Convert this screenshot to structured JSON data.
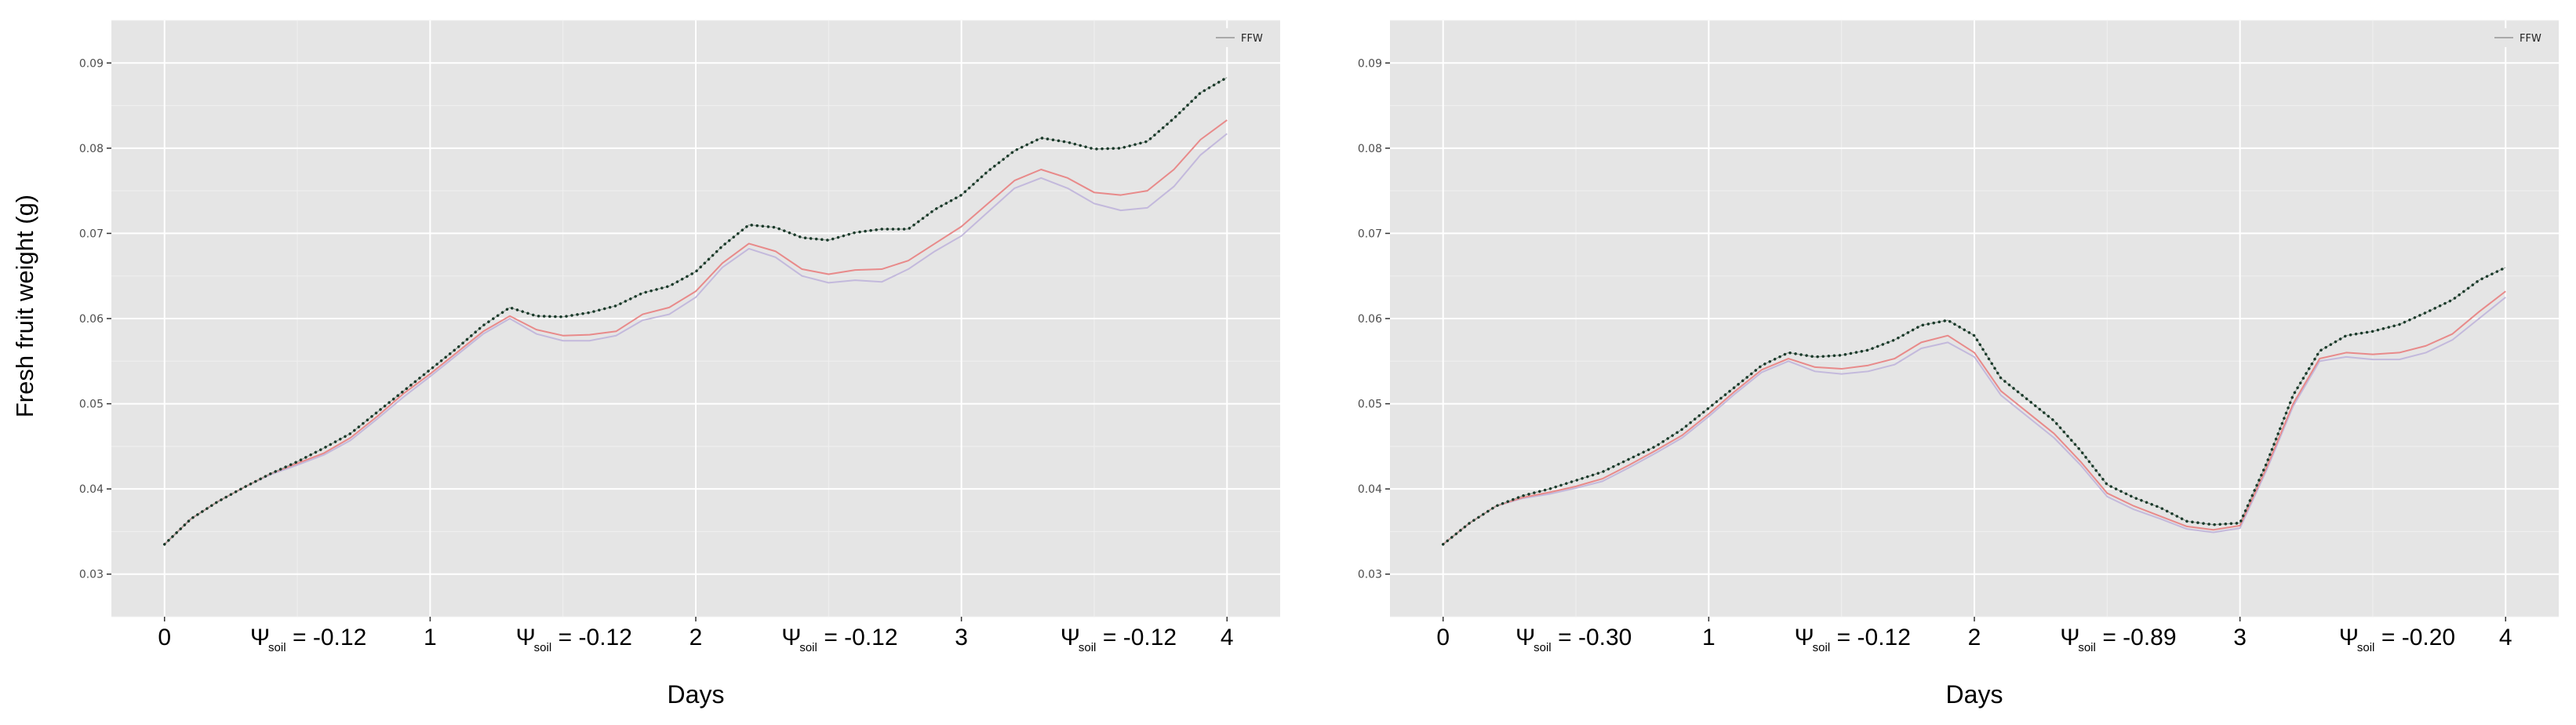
{
  "ylabel": "Fresh fruit weight (g)",
  "chart_data": [
    {
      "type": "line",
      "xlabel": "Days",
      "x_ticks": [
        "0",
        "1",
        "2",
        "3",
        "4"
      ],
      "y_ticks": [
        "0.03",
        "0.04",
        "0.05",
        "0.06",
        "0.07",
        "0.08",
        "0.09"
      ],
      "xlim": [
        -0.2,
        4.2
      ],
      "ylim": [
        0.025,
        0.095
      ],
      "grid": true,
      "legend": {
        "position": "top-right",
        "entries": [
          {
            "label": "FFW",
            "color": "#a9a9a9"
          }
        ]
      },
      "psi_annotations": [
        {
          "x": 0.5,
          "sym": "Ψ",
          "sub": "soil",
          "value": "= -0.12"
        },
        {
          "x": 1.5,
          "sym": "Ψ",
          "sub": "soil",
          "value": "= -0.12"
        },
        {
          "x": 2.5,
          "sym": "Ψ",
          "sub": "soil",
          "value": "= -0.12"
        },
        {
          "x": 3.55,
          "sym": "Ψ",
          "sub": "soil",
          "value": "= -0.12"
        }
      ],
      "x": [
        0,
        0.1,
        0.2,
        0.3,
        0.4,
        0.5,
        0.6,
        0.7,
        0.8,
        0.9,
        1.0,
        1.1,
        1.2,
        1.3,
        1.4,
        1.5,
        1.6,
        1.7,
        1.8,
        1.9,
        2.0,
        2.1,
        2.2,
        2.3,
        2.4,
        2.5,
        2.6,
        2.7,
        2.8,
        2.9,
        3.0,
        3.1,
        3.2,
        3.3,
        3.4,
        3.5,
        3.6,
        3.7,
        3.8,
        3.9,
        4.0
      ],
      "series": [
        {
          "color": "#1a3a2a",
          "style": "dotted",
          "values": [
            0.0335,
            0.0365,
            0.0385,
            0.0402,
            0.0418,
            0.0432,
            0.0448,
            0.0465,
            0.049,
            0.0515,
            0.054,
            0.0565,
            0.0592,
            0.0613,
            0.0603,
            0.0602,
            0.0607,
            0.0615,
            0.063,
            0.0638,
            0.0655,
            0.0685,
            0.071,
            0.0707,
            0.0695,
            0.0692,
            0.0701,
            0.0705,
            0.0705,
            0.0728,
            0.0745,
            0.0773,
            0.0797,
            0.0812,
            0.0807,
            0.0799,
            0.08,
            0.0808,
            0.0835,
            0.0865,
            0.0883
          ]
        },
        {
          "color": "#e88a8a",
          "style": "solid",
          "values": [
            0.0335,
            0.0365,
            0.0385,
            0.0402,
            0.0418,
            0.043,
            0.0442,
            0.046,
            0.0485,
            0.0512,
            0.0535,
            0.056,
            0.0585,
            0.0603,
            0.0587,
            0.058,
            0.0581,
            0.0585,
            0.0605,
            0.0613,
            0.0632,
            0.0665,
            0.0688,
            0.0679,
            0.0658,
            0.0652,
            0.0657,
            0.0658,
            0.0668,
            0.0688,
            0.0708,
            0.0735,
            0.0762,
            0.0775,
            0.0765,
            0.0748,
            0.0745,
            0.075,
            0.0775,
            0.081,
            0.0833
          ]
        },
        {
          "color": "#c3b9dc",
          "style": "solid",
          "values": [
            0.0335,
            0.0365,
            0.0385,
            0.0402,
            0.0417,
            0.0428,
            0.044,
            0.0457,
            0.0482,
            0.0508,
            0.0532,
            0.0557,
            0.0582,
            0.06,
            0.0582,
            0.0574,
            0.0574,
            0.058,
            0.0598,
            0.0605,
            0.0625,
            0.066,
            0.0682,
            0.0672,
            0.065,
            0.0642,
            0.0645,
            0.0643,
            0.0658,
            0.0679,
            0.0697,
            0.0725,
            0.0753,
            0.0765,
            0.0753,
            0.0735,
            0.0727,
            0.073,
            0.0755,
            0.0792,
            0.0817
          ]
        }
      ]
    },
    {
      "type": "line",
      "xlabel": "Days",
      "x_ticks": [
        "0",
        "1",
        "2",
        "3",
        "4"
      ],
      "y_ticks": [
        "0.03",
        "0.04",
        "0.05",
        "0.06",
        "0.07",
        "0.08",
        "0.09"
      ],
      "xlim": [
        -0.2,
        4.2
      ],
      "ylim": [
        0.025,
        0.095
      ],
      "grid": true,
      "legend": {
        "position": "top-right",
        "entries": [
          {
            "label": "FFW",
            "color": "#a9a9a9"
          }
        ]
      },
      "psi_annotations": [
        {
          "x": 0.45,
          "sym": "Ψ",
          "sub": "soil",
          "value": "= -0.30"
        },
        {
          "x": 1.5,
          "sym": "Ψ",
          "sub": "soil",
          "value": "= -0.12"
        },
        {
          "x": 2.5,
          "sym": "Ψ",
          "sub": "soil",
          "value": "= -0.89"
        },
        {
          "x": 3.55,
          "sym": "Ψ",
          "sub": "soil",
          "value": "= -0.20"
        }
      ],
      "x": [
        0,
        0.1,
        0.2,
        0.3,
        0.4,
        0.5,
        0.6,
        0.7,
        0.8,
        0.9,
        1.0,
        1.1,
        1.2,
        1.3,
        1.4,
        1.5,
        1.6,
        1.7,
        1.8,
        1.9,
        2.0,
        2.1,
        2.2,
        2.3,
        2.4,
        2.5,
        2.6,
        2.7,
        2.8,
        2.9,
        3.0,
        3.1,
        3.2,
        3.3,
        3.4,
        3.5,
        3.6,
        3.7,
        3.8,
        3.9,
        4.0
      ],
      "series": [
        {
          "color": "#1a3a2a",
          "style": "dotted",
          "values": [
            0.0335,
            0.036,
            0.038,
            0.0392,
            0.04,
            0.041,
            0.042,
            0.0435,
            0.045,
            0.047,
            0.0495,
            0.052,
            0.0545,
            0.056,
            0.0555,
            0.0557,
            0.0563,
            0.0575,
            0.0592,
            0.0598,
            0.058,
            0.053,
            0.0505,
            0.048,
            0.0445,
            0.0405,
            0.039,
            0.0378,
            0.0362,
            0.0358,
            0.036,
            0.043,
            0.051,
            0.0562,
            0.058,
            0.0585,
            0.0593,
            0.0607,
            0.0622,
            0.0645,
            0.066
          ]
        },
        {
          "color": "#e88a8a",
          "style": "solid",
          "values": [
            0.0335,
            0.036,
            0.038,
            0.039,
            0.0396,
            0.0403,
            0.0412,
            0.0428,
            0.0445,
            0.0463,
            0.0488,
            0.0515,
            0.054,
            0.0553,
            0.0543,
            0.0541,
            0.0545,
            0.0553,
            0.0572,
            0.058,
            0.056,
            0.0515,
            0.049,
            0.0465,
            0.0432,
            0.0395,
            0.038,
            0.0368,
            0.0356,
            0.0352,
            0.0357,
            0.0425,
            0.05,
            0.0553,
            0.056,
            0.0558,
            0.056,
            0.0568,
            0.0582,
            0.0608,
            0.0632
          ]
        },
        {
          "color": "#c3b9dc",
          "style": "solid",
          "values": [
            0.0335,
            0.036,
            0.038,
            0.0389,
            0.0394,
            0.0401,
            0.0409,
            0.0425,
            0.0442,
            0.046,
            0.0485,
            0.0512,
            0.0537,
            0.055,
            0.0538,
            0.0535,
            0.0538,
            0.0546,
            0.0565,
            0.0572,
            0.0555,
            0.051,
            0.0485,
            0.046,
            0.0428,
            0.0391,
            0.0376,
            0.0365,
            0.0353,
            0.0349,
            0.0354,
            0.0422,
            0.0497,
            0.055,
            0.0555,
            0.0552,
            0.0552,
            0.056,
            0.0575,
            0.06,
            0.0625
          ]
        }
      ]
    }
  ]
}
